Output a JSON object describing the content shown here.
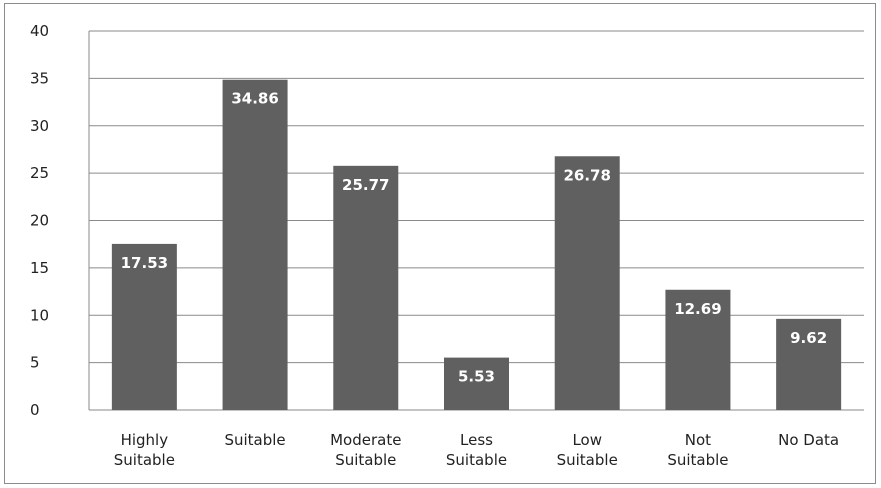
{
  "chart_data": {
    "type": "bar",
    "title": "",
    "xlabel": "",
    "ylabel": "",
    "categories": [
      [
        "Highly",
        "Suitable"
      ],
      [
        "Suitable"
      ],
      [
        "Moderate",
        "Suitable"
      ],
      [
        "Less",
        "Suitable"
      ],
      [
        "Low",
        "Suitable"
      ],
      [
        "Not",
        "Suitable"
      ],
      [
        "No Data"
      ]
    ],
    "values": [
      17.53,
      34.86,
      25.77,
      5.53,
      26.78,
      12.69,
      9.62
    ],
    "data_labels": [
      "17.53",
      "34.86",
      "25.77",
      "5.53",
      "26.78",
      "12.69",
      "9.62"
    ],
    "ylim": [
      0,
      40
    ],
    "yticks": [
      "0",
      "5",
      "10",
      "15",
      "20",
      "25",
      "30",
      "35",
      "40"
    ],
    "grid": true,
    "legend": "none",
    "colors": {
      "bar": "#606060",
      "grid": "#8a8a8a",
      "axis": "#8a8a8a"
    }
  }
}
